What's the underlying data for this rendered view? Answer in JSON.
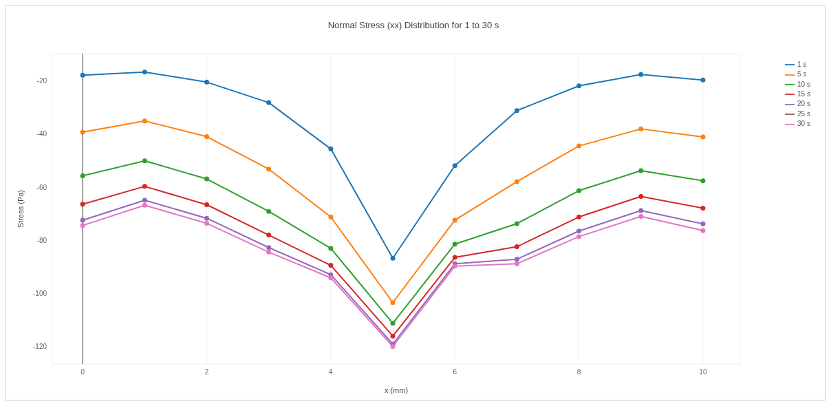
{
  "chart_data": {
    "type": "line",
    "title": "Normal Stress (xx) Distribution for 1 to 30 s",
    "xlabel": "x (mm)",
    "ylabel": "Stress (Pa)",
    "x": [
      0,
      1,
      2,
      3,
      4,
      5,
      6,
      7,
      8,
      9,
      10
    ],
    "series": [
      {
        "name": "1 s",
        "color": "#1f77b4",
        "values": [
          -17.9,
          -16.7,
          -20.5,
          -28.2,
          -45.6,
          -86.7,
          -51.9,
          -31.2,
          -21.9,
          -17.6,
          -19.7
        ]
      },
      {
        "name": "5 s",
        "color": "#ff7f0e",
        "values": [
          -39.3,
          -35.1,
          -41.0,
          -53.2,
          -71.2,
          -103.4,
          -72.4,
          -57.9,
          -44.5,
          -38.1,
          -41.1
        ]
      },
      {
        "name": "10 s",
        "color": "#2ca02c",
        "values": [
          -55.7,
          -50.1,
          -56.9,
          -69.1,
          -83.0,
          -111.2,
          -81.4,
          -73.7,
          -61.3,
          -53.8,
          -57.6
        ]
      },
      {
        "name": "15 s",
        "color": "#d62728",
        "values": [
          -66.4,
          -59.7,
          -66.6,
          -78.0,
          -89.4,
          -116.0,
          -86.4,
          -82.4,
          -71.2,
          -63.5,
          -67.9
        ]
      },
      {
        "name": "20 s",
        "color": "#9467bd",
        "values": [
          -72.4,
          -64.9,
          -71.7,
          -82.7,
          -92.9,
          -119.0,
          -88.8,
          -87.1,
          -76.5,
          -68.8,
          -73.8
        ]
      },
      {
        "name": "25 s",
        "color": "#8c564b",
        "values": [
          null,
          null,
          null,
          null,
          null,
          null,
          null,
          null,
          null,
          null,
          null
        ]
      },
      {
        "name": "30 s",
        "color": "#e377c2",
        "values": [
          -74.4,
          -66.8,
          -73.6,
          -84.4,
          -94.1,
          -119.9,
          -89.7,
          -88.8,
          -78.6,
          -71.0,
          -76.3
        ]
      }
    ],
    "xlim": [
      -0.49,
      10.6
    ],
    "xticks": [
      0,
      2,
      4,
      6,
      8,
      10
    ],
    "ylim": [
      -126.5,
      -9.8
    ],
    "yticks": [
      -120,
      -100,
      -80,
      -60,
      -40,
      -20
    ],
    "ref_lines": [
      {
        "axis": "x",
        "value": 0,
        "color": "#444444"
      }
    ],
    "grid": true,
    "legend": "top right",
    "marker": "circle",
    "line_style": "solid"
  }
}
